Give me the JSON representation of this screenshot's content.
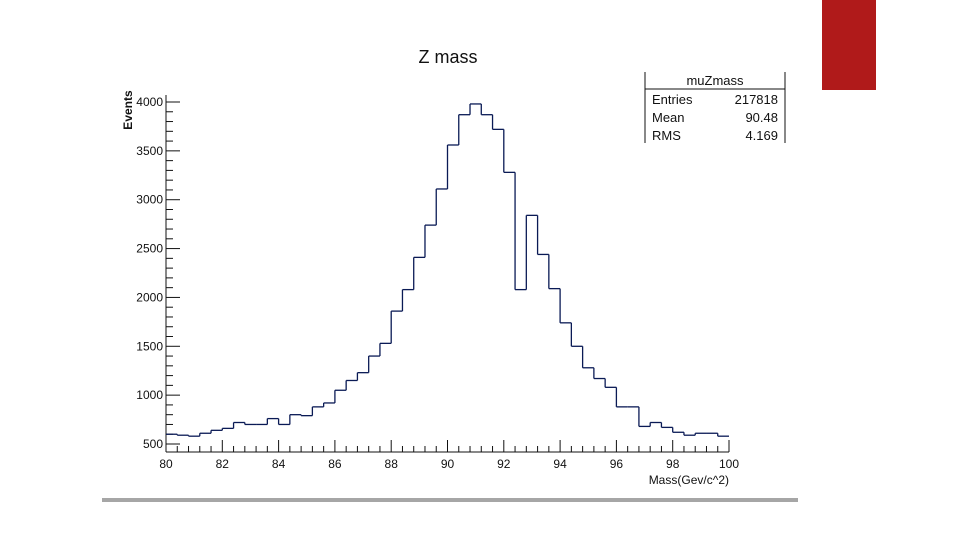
{
  "colors": {
    "accent": "#b01a1a",
    "rule": "#a6a6a6",
    "histogram_line": "#0a1a55"
  },
  "chart_data": {
    "type": "histogram",
    "title": "Z mass",
    "xlabel": "Mass(Gev/c^2)",
    "ylabel": "Events",
    "xlim": [
      80,
      100
    ],
    "ylim": [
      500,
      4000
    ],
    "x_ticks": [
      "80",
      "82",
      "84",
      "86",
      "88",
      "90",
      "92",
      "94",
      "96",
      "98",
      "100"
    ],
    "y_ticks": [
      "500",
      "1000",
      "1500",
      "2000",
      "2500",
      "3000",
      "3500",
      "4000"
    ],
    "bin_width": 0.4,
    "bin_edges_start": 80,
    "values": [
      600,
      590,
      580,
      610,
      640,
      660,
      720,
      700,
      700,
      760,
      700,
      800,
      790,
      880,
      920,
      1050,
      1150,
      1230,
      1400,
      1530,
      1860,
      2080,
      2410,
      2740,
      3110,
      3560,
      3870,
      3980,
      3870,
      3720,
      3280,
      2080,
      2840,
      2440,
      2090,
      1740,
      1500,
      1280,
      1170,
      1080,
      880,
      880,
      680,
      720,
      670,
      620,
      590,
      610,
      610,
      580
    ],
    "grid": false,
    "legend": "none",
    "stats_box": {
      "name": "muZmass",
      "rows": [
        {
          "label": "Entries",
          "value": "217818"
        },
        {
          "label": "Mean",
          "value": "90.48"
        },
        {
          "label": "RMS",
          "value": "4.169"
        }
      ]
    }
  }
}
